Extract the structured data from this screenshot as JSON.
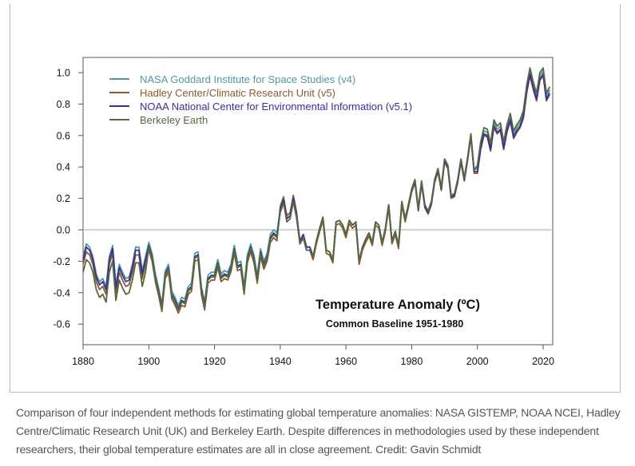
{
  "chart_data": {
    "type": "line",
    "title": "Temperature Anomaly (ºC)",
    "subtitle": "Common Baseline 1951-1980",
    "xlabel": "",
    "ylabel": "",
    "xlim": [
      1880,
      2022
    ],
    "ylim": [
      -0.7,
      1.1
    ],
    "x_start": 1880,
    "xticks": [
      "1880",
      "1900",
      "1920",
      "1940",
      "1960",
      "1980",
      "2000",
      "2020"
    ],
    "yticks": [
      "1.0",
      "0.8",
      "0.6",
      "0.4",
      "0.2",
      "0.0",
      "-0.2",
      "-0.4",
      "-0.6"
    ],
    "reference_line": 0.0,
    "legend_position": "top-left",
    "series": [
      {
        "name": "NASA Goddard Institute for Space Studies (v4)",
        "color": "#4e9c9a",
        "values": [
          -0.17,
          -0.09,
          -0.11,
          -0.17,
          -0.28,
          -0.33,
          -0.31,
          -0.36,
          -0.17,
          -0.1,
          -0.35,
          -0.22,
          -0.27,
          -0.31,
          -0.3,
          -0.22,
          -0.11,
          -0.11,
          -0.26,
          -0.17,
          -0.08,
          -0.15,
          -0.28,
          -0.37,
          -0.47,
          -0.26,
          -0.22,
          -0.39,
          -0.43,
          -0.48,
          -0.43,
          -0.44,
          -0.36,
          -0.34,
          -0.15,
          -0.14,
          -0.36,
          -0.46,
          -0.29,
          -0.27,
          -0.27,
          -0.19,
          -0.28,
          -0.26,
          -0.27,
          -0.22,
          -0.1,
          -0.21,
          -0.2,
          -0.36,
          -0.16,
          -0.09,
          -0.16,
          -0.29,
          -0.12,
          -0.2,
          -0.15,
          -0.03,
          0.0,
          -0.02,
          0.13,
          0.19,
          0.07,
          0.09,
          0.2,
          0.09,
          -0.07,
          -0.03,
          -0.11,
          -0.11,
          -0.17,
          -0.07,
          0.01,
          0.08,
          -0.13,
          -0.14,
          -0.19,
          0.05,
          0.06,
          0.03,
          -0.03,
          0.06,
          0.03,
          0.05,
          -0.2,
          -0.11,
          -0.06,
          -0.02,
          -0.08,
          0.05,
          0.03,
          -0.08,
          0.01,
          0.16,
          -0.07,
          -0.01,
          -0.1,
          0.18,
          0.07,
          0.16,
          0.26,
          0.32,
          0.14,
          0.31,
          0.16,
          0.12,
          0.18,
          0.32,
          0.39,
          0.27,
          0.45,
          0.41,
          0.22,
          0.23,
          0.32,
          0.45,
          0.33,
          0.46,
          0.61,
          0.38,
          0.39,
          0.54,
          0.63,
          0.62,
          0.53,
          0.68,
          0.64,
          0.66,
          0.54,
          0.65,
          0.72,
          0.61,
          0.65,
          0.68,
          0.74,
          0.9,
          1.01,
          0.92,
          0.85,
          0.98,
          1.01,
          0.85,
          0.89
        ]
      },
      {
        "name": "Hadley Center/Climatic Research Unit (v5)",
        "color": "#8b5a2e",
        "values": [
          -0.22,
          -0.14,
          -0.16,
          -0.22,
          -0.33,
          -0.38,
          -0.36,
          -0.41,
          -0.22,
          -0.15,
          -0.4,
          -0.27,
          -0.32,
          -0.36,
          -0.35,
          -0.27,
          -0.16,
          -0.16,
          -0.31,
          -0.22,
          -0.13,
          -0.2,
          -0.33,
          -0.42,
          -0.52,
          -0.31,
          -0.27,
          -0.44,
          -0.48,
          -0.53,
          -0.48,
          -0.49,
          -0.41,
          -0.39,
          -0.2,
          -0.19,
          -0.41,
          -0.51,
          -0.34,
          -0.32,
          -0.32,
          -0.24,
          -0.33,
          -0.31,
          -0.32,
          -0.27,
          -0.15,
          -0.26,
          -0.25,
          -0.41,
          -0.21,
          -0.14,
          -0.21,
          -0.34,
          -0.17,
          -0.25,
          -0.2,
          -0.08,
          -0.05,
          -0.07,
          0.15,
          0.21,
          0.09,
          0.11,
          0.22,
          0.11,
          -0.09,
          -0.05,
          -0.13,
          -0.13,
          -0.19,
          -0.09,
          -0.01,
          0.06,
          -0.15,
          -0.16,
          -0.21,
          0.03,
          0.04,
          0.01,
          -0.05,
          0.04,
          0.01,
          0.03,
          -0.22,
          -0.13,
          -0.08,
          -0.04,
          -0.1,
          0.03,
          0.01,
          -0.1,
          -0.01,
          0.14,
          -0.09,
          -0.03,
          -0.12,
          0.16,
          0.05,
          0.14,
          0.24,
          0.3,
          0.12,
          0.29,
          0.14,
          0.1,
          0.16,
          0.3,
          0.37,
          0.25,
          0.43,
          0.39,
          0.2,
          0.21,
          0.3,
          0.43,
          0.31,
          0.44,
          0.59,
          0.36,
          0.36,
          0.51,
          0.6,
          0.59,
          0.5,
          0.65,
          0.61,
          0.63,
          0.51,
          0.62,
          0.69,
          0.58,
          0.62,
          0.65,
          0.71,
          0.87,
          0.98,
          0.89,
          0.82,
          0.95,
          0.98,
          0.82,
          0.86
        ]
      },
      {
        "name": "NOAA National Center for Environmental Information (v5.1)",
        "color": "#3b2f9c",
        "values": [
          -0.19,
          -0.11,
          -0.13,
          -0.19,
          -0.3,
          -0.35,
          -0.33,
          -0.38,
          -0.19,
          -0.12,
          -0.37,
          -0.24,
          -0.29,
          -0.33,
          -0.32,
          -0.24,
          -0.13,
          -0.13,
          -0.28,
          -0.19,
          -0.1,
          -0.17,
          -0.3,
          -0.39,
          -0.49,
          -0.28,
          -0.24,
          -0.41,
          -0.45,
          -0.5,
          -0.45,
          -0.46,
          -0.38,
          -0.36,
          -0.17,
          -0.16,
          -0.38,
          -0.48,
          -0.31,
          -0.29,
          -0.29,
          -0.21,
          -0.3,
          -0.28,
          -0.29,
          -0.24,
          -0.12,
          -0.23,
          -0.22,
          -0.38,
          -0.18,
          -0.11,
          -0.18,
          -0.31,
          -0.14,
          -0.22,
          -0.17,
          -0.05,
          -0.02,
          -0.04,
          0.13,
          0.19,
          0.07,
          0.09,
          0.2,
          0.09,
          -0.07,
          -0.03,
          -0.11,
          -0.11,
          -0.17,
          -0.07,
          0.01,
          0.08,
          -0.13,
          -0.14,
          -0.19,
          0.05,
          0.06,
          0.03,
          -0.03,
          0.06,
          0.03,
          0.05,
          -0.2,
          -0.11,
          -0.06,
          -0.02,
          -0.08,
          0.05,
          0.03,
          -0.08,
          0.01,
          0.16,
          -0.07,
          -0.01,
          -0.1,
          0.18,
          0.07,
          0.16,
          0.25,
          0.31,
          0.13,
          0.3,
          0.15,
          0.11,
          0.17,
          0.31,
          0.38,
          0.26,
          0.44,
          0.4,
          0.21,
          0.22,
          0.31,
          0.44,
          0.32,
          0.45,
          0.6,
          0.37,
          0.37,
          0.52,
          0.61,
          0.6,
          0.51,
          0.66,
          0.62,
          0.64,
          0.52,
          0.63,
          0.7,
          0.59,
          0.63,
          0.66,
          0.72,
          0.88,
          0.99,
          0.9,
          0.83,
          0.96,
          0.99,
          0.83,
          0.87
        ]
      },
      {
        "name": "Berkeley Earth",
        "color": "#56693f",
        "values": [
          -0.27,
          -0.19,
          -0.21,
          -0.27,
          -0.38,
          -0.43,
          -0.41,
          -0.46,
          -0.27,
          -0.2,
          -0.45,
          -0.32,
          -0.37,
          -0.41,
          -0.4,
          -0.32,
          -0.21,
          -0.21,
          -0.36,
          -0.27,
          -0.11,
          -0.18,
          -0.31,
          -0.4,
          -0.5,
          -0.29,
          -0.25,
          -0.42,
          -0.46,
          -0.51,
          -0.46,
          -0.47,
          -0.39,
          -0.37,
          -0.18,
          -0.17,
          -0.39,
          -0.49,
          -0.32,
          -0.3,
          -0.3,
          -0.22,
          -0.31,
          -0.29,
          -0.3,
          -0.25,
          -0.13,
          -0.24,
          -0.23,
          -0.39,
          -0.19,
          -0.12,
          -0.19,
          -0.32,
          -0.15,
          -0.23,
          -0.18,
          -0.06,
          -0.03,
          -0.05,
          0.11,
          0.17,
          0.05,
          0.07,
          0.18,
          0.07,
          -0.09,
          -0.05,
          -0.13,
          -0.13,
          -0.17,
          -0.07,
          0.01,
          0.08,
          -0.13,
          -0.14,
          -0.19,
          0.05,
          0.06,
          0.03,
          -0.03,
          0.06,
          0.03,
          0.05,
          -0.2,
          -0.11,
          -0.06,
          -0.02,
          -0.08,
          0.05,
          0.03,
          -0.08,
          0.01,
          0.16,
          -0.07,
          -0.01,
          -0.1,
          0.18,
          0.07,
          0.16,
          0.26,
          0.32,
          0.14,
          0.31,
          0.16,
          0.12,
          0.18,
          0.32,
          0.39,
          0.27,
          0.45,
          0.41,
          0.22,
          0.23,
          0.32,
          0.45,
          0.33,
          0.46,
          0.61,
          0.38,
          0.41,
          0.56,
          0.65,
          0.64,
          0.55,
          0.7,
          0.66,
          0.68,
          0.56,
          0.67,
          0.74,
          0.63,
          0.67,
          0.7,
          0.76,
          0.92,
          1.03,
          0.94,
          0.87,
          1.0,
          1.03,
          0.87,
          0.91
        ]
      }
    ]
  },
  "caption": "Comparison of four independent methods for estimating global temperature anomalies: NASA GISTEMP, NOAA NCEI, Hadley Centre/Climatic Research Unit (UK) and Berkeley Earth. Despite differences in methodologies used by these independent researchers, their global temperature estimates are all in close agreement. Credit: Gavin Schmidt"
}
